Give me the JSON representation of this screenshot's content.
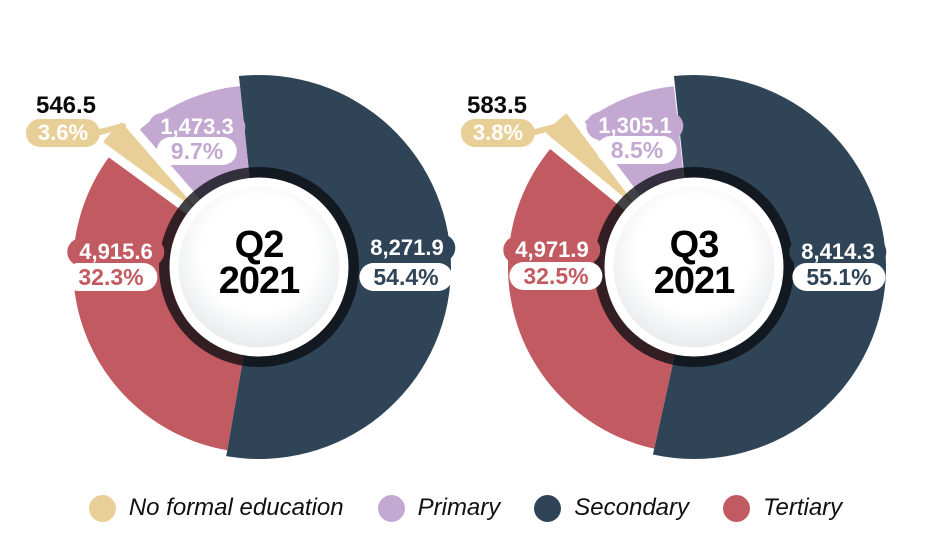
{
  "chart_data": [
    {
      "type": "pie",
      "title": "Q2 2021",
      "center_label": [
        "Q2",
        "2021"
      ],
      "legend_position": "bottom",
      "donut": true,
      "exploded_slice": "No formal education",
      "slices": [
        {
          "id": "no_formal",
          "label": "No formal education",
          "value": 546.5,
          "value_label": "546.5",
          "percent": 3.6,
          "percent_label": "3.6%"
        },
        {
          "id": "primary",
          "label": "Primary",
          "value": 1473.3,
          "value_label": "1,473.3",
          "percent": 9.7,
          "percent_label": "9.7%"
        },
        {
          "id": "secondary",
          "label": "Secondary",
          "value": 8271.9,
          "value_label": "8,271.9",
          "percent": 54.4,
          "percent_label": "54.4%"
        },
        {
          "id": "tertiary",
          "label": "Tertiary",
          "value": 4915.6,
          "value_label": "4,915.6",
          "percent": 32.3,
          "percent_label": "32.3%"
        }
      ]
    },
    {
      "type": "pie",
      "title": "Q3 2021",
      "center_label": [
        "Q3",
        "2021"
      ],
      "legend_position": "bottom",
      "donut": true,
      "exploded_slice": "No formal education",
      "slices": [
        {
          "id": "no_formal",
          "label": "No formal education",
          "value": 583.5,
          "value_label": "583.5",
          "percent": 3.8,
          "percent_label": "3.8%"
        },
        {
          "id": "primary",
          "label": "Primary",
          "value": 1305.1,
          "value_label": "1,305.1",
          "percent": 8.5,
          "percent_label": "8.5%"
        },
        {
          "id": "secondary",
          "label": "Secondary",
          "value": 8414.3,
          "value_label": "8,414.3",
          "percent": 55.1,
          "percent_label": "55.1%"
        },
        {
          "id": "tertiary",
          "label": "Tertiary",
          "value": 4971.9,
          "value_label": "4,971.9",
          "percent": 32.5,
          "percent_label": "32.5%"
        }
      ]
    }
  ],
  "legend": {
    "items": [
      {
        "id": "no_formal",
        "label": "No formal education",
        "color": "#e8cf97"
      },
      {
        "id": "primary",
        "label": "Primary",
        "color": "#c3a9d1"
      },
      {
        "id": "secondary",
        "label": "Secondary",
        "color": "#2f4557"
      },
      {
        "id": "tertiary",
        "label": "Tertiary",
        "color": "#c25a61"
      }
    ]
  },
  "colors": {
    "no_formal": "#e8cf97",
    "primary": "#c3a9d1",
    "secondary": "#2f4557",
    "tertiary": "#c25a61",
    "ring_overlay": "rgba(10,13,18,0.78)",
    "hub_gradient_inner": "#ffffff",
    "hub_gradient_outer": "#d5d8dc",
    "hub_rim": "#ffffff",
    "text_dark": "#0b0b0b"
  }
}
